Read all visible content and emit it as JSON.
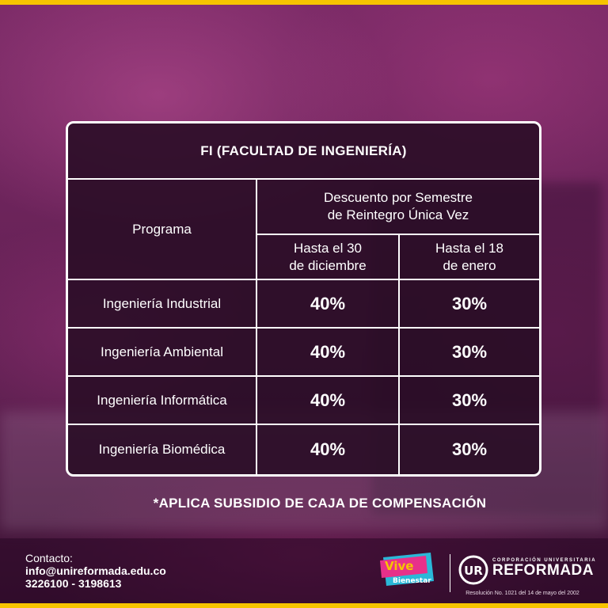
{
  "table": {
    "title": "FI (FACULTAD DE INGENIERÍA)",
    "program_header": "Programa",
    "discount_header_line1": "Descuento por Semestre",
    "discount_header_line2": "de Reintegro Única Vez",
    "col1_line1": "Hasta el 30",
    "col1_line2": "de diciembre",
    "col2_line1": "Hasta el 18",
    "col2_line2": "de enero",
    "rows": [
      {
        "program": "Ingeniería Industrial",
        "until_dec_30": "40%",
        "until_jan_18": "30%"
      },
      {
        "program": "Ingeniería Ambiental",
        "until_dec_30": "40%",
        "until_jan_18": "30%"
      },
      {
        "program": "Ingeniería Informática",
        "until_dec_30": "40%",
        "until_jan_18": "30%"
      },
      {
        "program": "Ingeniería Biomédica",
        "until_dec_30": "40%",
        "until_jan_18": "30%"
      }
    ]
  },
  "note": "*APLICA SUBSIDIO DE CAJA DE COMPENSACIÓN",
  "contact": {
    "label": "Contacto:",
    "email": "info@unireformada.edu.co",
    "phones": "3226100 - 3198613"
  },
  "branding": {
    "vive_logo_text_1": "Vive",
    "vive_logo_text_2": "Bienestar",
    "ur_monogram": "UR",
    "corp_line": "CORPORACIÓN UNIVERSITARIA",
    "name": "REFORMADA",
    "resolution": "Resolución No. 1021 del 14 de mayo del 2002"
  },
  "colors": {
    "accent_yellow": "#f6c400",
    "background_magenta": "#6a2359",
    "card_fill": "#280c24"
  }
}
